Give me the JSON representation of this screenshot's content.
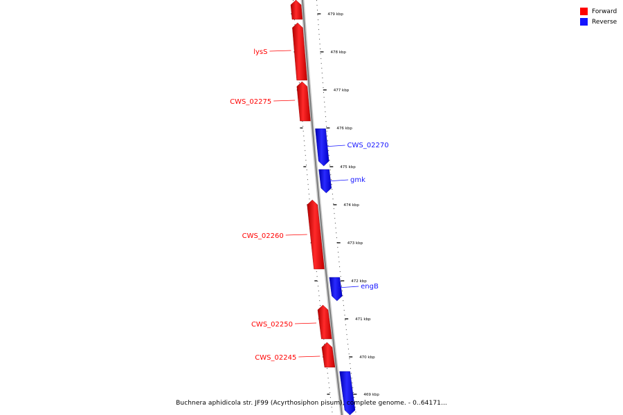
{
  "colors": {
    "forward": "#ff0000",
    "reverse": "#1414ff"
  },
  "legend": [
    {
      "label": "Forward",
      "color": "#ff0000"
    },
    {
      "label": "Reverse",
      "color": "#1414ff"
    }
  ],
  "caption": "Buchnera aphidicola str. JF99 (Acyrthosiphon pisum), complete genome. - 0..64171...",
  "ticks": [
    "479 kbp",
    "478 kbp",
    "477 kbp",
    "476 kbp",
    "475 kbp",
    "474 kbp",
    "473 kbp",
    "472 kbp",
    "471 kbp",
    "470 kbp",
    "469 kbp"
  ],
  "genes": [
    {
      "label": "",
      "strand": "forward"
    },
    {
      "label": "lysS",
      "strand": "forward"
    },
    {
      "label": "CWS_02275",
      "strand": "forward"
    },
    {
      "label": "CWS_02270",
      "strand": "reverse"
    },
    {
      "label": "gmk",
      "strand": "reverse"
    },
    {
      "label": "CWS_02260",
      "strand": "forward"
    },
    {
      "label": "engB",
      "strand": "reverse"
    },
    {
      "label": "CWS_02250",
      "strand": "forward"
    },
    {
      "label": "CWS_02245",
      "strand": "forward"
    },
    {
      "label": "",
      "strand": "reverse"
    }
  ]
}
